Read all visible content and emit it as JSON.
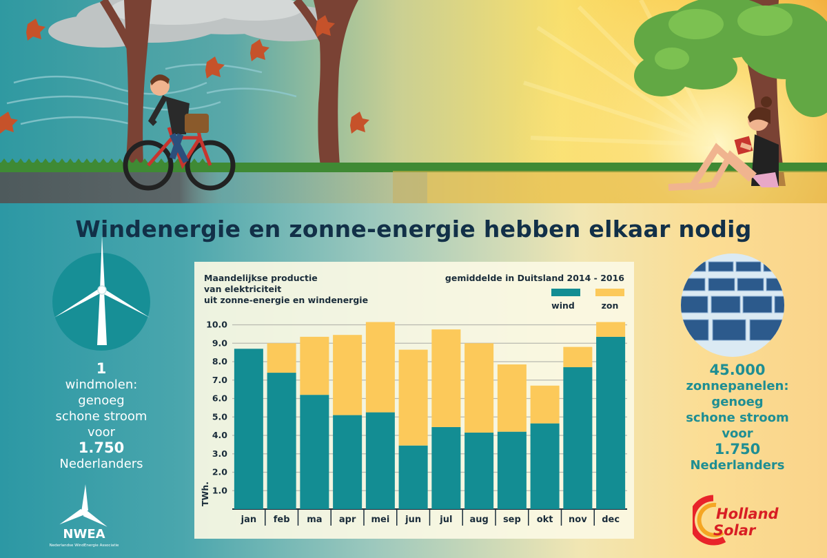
{
  "title": "Windenergie en zonne-energie hebben elkaar nodig",
  "left_panel": {
    "count": "1",
    "line1": "windmolen:",
    "line2": "genoeg",
    "line3": "schone stroom",
    "line4": "voor",
    "number": "1.750",
    "line5": "Nederlanders"
  },
  "right_panel": {
    "count": "45.000",
    "line1": "zonnepanelen:",
    "line2": "genoeg",
    "line3": "schone stroom",
    "line4": "voor",
    "number": "1.750",
    "line5": "Nederlanders"
  },
  "logos": {
    "nwea": "NWEA",
    "nwea_sub": "Nederlandse WindEnergie Associatie",
    "holland": "Holland",
    "solar": "Solar"
  },
  "colors": {
    "wind": "#138d93",
    "zon": "#fcc95a",
    "title": "#123048"
  },
  "chart_data": {
    "type": "bar",
    "stacked": true,
    "title_lines": [
      "Maandelijkse productie",
      "van elektriciteit",
      "uit zonne-energie en windenergie"
    ],
    "subtitle": "gemiddelde in Duitsland 2014 - 2016",
    "ylabel": "TWh.",
    "xlabel": "",
    "ylim": [
      0,
      10
    ],
    "y_ticks": [
      "1.0",
      "2.0",
      "3.0",
      "4.0",
      "5.0",
      "6.0",
      "7.0",
      "8.0",
      "9.0",
      "10.0"
    ],
    "grid": true,
    "legend_position": "top-right",
    "categories": [
      "jan",
      "feb",
      "ma",
      "apr",
      "mei",
      "jun",
      "jul",
      "aug",
      "sep",
      "okt",
      "nov",
      "dec"
    ],
    "series": [
      {
        "name": "wind",
        "color": "#138d93",
        "values": [
          8.7,
          7.4,
          6.2,
          5.1,
          5.25,
          3.45,
          4.45,
          4.15,
          4.2,
          4.65,
          7.7,
          9.35
        ]
      },
      {
        "name": "zon",
        "color": "#fcc95a",
        "values": [
          0,
          1.6,
          3.15,
          4.35,
          4.9,
          5.2,
          5.3,
          4.85,
          3.65,
          2.05,
          1.1,
          0.8
        ]
      }
    ]
  }
}
